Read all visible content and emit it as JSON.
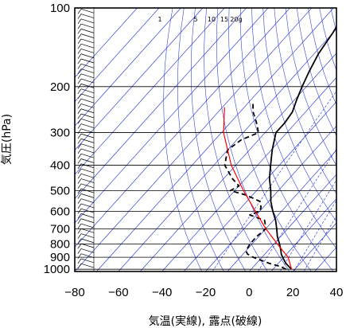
{
  "chart_data": {
    "type": "line",
    "subtype": "skew-T log-P aerological diagram",
    "xlabel": "気温(実線), 露点(破線)",
    "ylabel": "気圧(hPa)",
    "xlim": [
      -80,
      40
    ],
    "ylim": [
      1020,
      100
    ],
    "y_scale": "log",
    "x_ticks": [
      -80,
      -60,
      -40,
      -20,
      0,
      20,
      40
    ],
    "y_ticks": [
      100,
      200,
      300,
      400,
      500,
      600,
      700,
      800,
      900,
      1000
    ],
    "mixing_ratio_labels": [
      "1",
      "5",
      "10",
      "15",
      "20g"
    ],
    "grid": true,
    "colors": {
      "temperature": "#000000",
      "dewpoint": "#000000",
      "parcel": "#ff0000",
      "isotherms": "#3344dd",
      "grid": "#000000"
    },
    "series": [
      {
        "key": "temperature",
        "style": "solid",
        "points": [
          [
            1000,
            18.5
          ],
          [
            975,
            16
          ],
          [
            950,
            13.5
          ],
          [
            925,
            11.5
          ],
          [
            900,
            9.5
          ],
          [
            875,
            7.5
          ],
          [
            850,
            6
          ],
          [
            800,
            2.5
          ],
          [
            750,
            -1.5
          ],
          [
            700,
            -5
          ],
          [
            650,
            -9
          ],
          [
            600,
            -14
          ],
          [
            550,
            -19
          ],
          [
            500,
            -23.5
          ],
          [
            450,
            -29
          ],
          [
            400,
            -34
          ],
          [
            350,
            -39.5
          ],
          [
            300,
            -45
          ],
          [
            275,
            -45
          ],
          [
            250,
            -46
          ],
          [
            225,
            -49
          ],
          [
            200,
            -52
          ],
          [
            175,
            -55
          ],
          [
            150,
            -58
          ],
          [
            125,
            -60
          ],
          [
            110,
            -62
          ],
          [
            100,
            -63
          ]
        ]
      },
      {
        "key": "dewpoint",
        "style": "dashed",
        "points": [
          [
            1000,
            16
          ],
          [
            975,
            12
          ],
          [
            950,
            6
          ],
          [
            925,
            1
          ],
          [
            900,
            -4
          ],
          [
            875,
            -8
          ],
          [
            850,
            -10
          ],
          [
            800,
            -11
          ],
          [
            750,
            -11
          ],
          [
            700,
            -10
          ],
          [
            650,
            -14
          ],
          [
            620,
            -23
          ],
          [
            600,
            -20
          ],
          [
            580,
            -21
          ],
          [
            550,
            -24
          ],
          [
            520,
            -33
          ],
          [
            500,
            -42
          ],
          [
            480,
            -40
          ],
          [
            450,
            -46
          ],
          [
            400,
            -55
          ],
          [
            350,
            -60
          ],
          [
            320,
            -58
          ],
          [
            300,
            -53
          ],
          [
            275,
            -58
          ],
          [
            250,
            -64
          ],
          [
            230,
            -68
          ]
        ]
      },
      {
        "key": "parcel",
        "style": "solid",
        "points": [
          [
            1000,
            18.5
          ],
          [
            900,
            12
          ],
          [
            800,
            1.5
          ],
          [
            700,
            -10
          ],
          [
            600,
            -22
          ],
          [
            500,
            -36
          ],
          [
            400,
            -52
          ],
          [
            300,
            -69
          ],
          [
            240,
            -79
          ]
        ]
      }
    ],
    "wind_barbs": "column of wind barbs along the left axis, 1000–100 hPa"
  }
}
